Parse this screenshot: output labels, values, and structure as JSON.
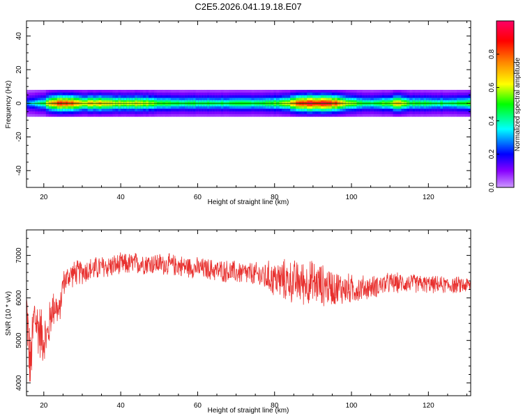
{
  "title": "C2E5.2026.041.19.18.E07",
  "chart_data": [
    {
      "type": "heatmap",
      "xlabel": "Height of straight line (km)",
      "ylabel": "Frequency (Hz)",
      "xlim": [
        15.5,
        131
      ],
      "ylim": [
        -50,
        49
      ],
      "xticks": [
        20,
        40,
        60,
        80,
        100,
        120
      ],
      "yticks": [
        -40,
        -20,
        0,
        20,
        40
      ],
      "colorbar": {
        "label": "Normalized spectral amplitude",
        "range": [
          0,
          1
        ],
        "ticks": [
          0.0,
          0.2,
          0.4,
          0.6,
          0.8
        ],
        "colors": [
          "#cc99ff",
          "#8800ff",
          "#0000ff",
          "#00ffff",
          "#00ff00",
          "#ffff00",
          "#ff8800",
          "#ff0000",
          "#ff0066"
        ]
      },
      "band": {
        "frequency_center": 0,
        "frequency_halfwidth": 4,
        "amplitude_profile": [
          {
            "x": 16,
            "a": 0.35
          },
          {
            "x": 18,
            "a": 0.45
          },
          {
            "x": 20,
            "a": 0.5
          },
          {
            "x": 22,
            "a": 0.8
          },
          {
            "x": 25,
            "a": 0.95
          },
          {
            "x": 28,
            "a": 0.85
          },
          {
            "x": 30,
            "a": 0.7
          },
          {
            "x": 35,
            "a": 0.75
          },
          {
            "x": 40,
            "a": 0.65
          },
          {
            "x": 45,
            "a": 0.7
          },
          {
            "x": 50,
            "a": 0.55
          },
          {
            "x": 60,
            "a": 0.5
          },
          {
            "x": 70,
            "a": 0.5
          },
          {
            "x": 80,
            "a": 0.55
          },
          {
            "x": 84,
            "a": 0.7
          },
          {
            "x": 87,
            "a": 0.95
          },
          {
            "x": 92,
            "a": 1.0
          },
          {
            "x": 97,
            "a": 0.85
          },
          {
            "x": 100,
            "a": 0.6
          },
          {
            "x": 105,
            "a": 0.5
          },
          {
            "x": 110,
            "a": 0.6
          },
          {
            "x": 112,
            "a": 0.8
          },
          {
            "x": 115,
            "a": 0.55
          },
          {
            "x": 120,
            "a": 0.5
          },
          {
            "x": 125,
            "a": 0.5
          },
          {
            "x": 131,
            "a": 0.55
          }
        ]
      }
    },
    {
      "type": "line",
      "xlabel": "Height of straight line (km)",
      "ylabel": "SNR (10 * v/v)",
      "xlim": [
        15.5,
        131
      ],
      "ylim": [
        3700,
        7600
      ],
      "xticks": [
        20,
        40,
        60,
        80,
        100,
        120
      ],
      "yticks": [
        4000,
        5000,
        6000,
        7000
      ],
      "series": [
        {
          "color": "#e8302e",
          "trend": [
            {
              "x": 15.5,
              "y": 5800
            },
            {
              "x": 16.5,
              "y": 4300
            },
            {
              "x": 17.5,
              "y": 5600
            },
            {
              "x": 18.5,
              "y": 5300
            },
            {
              "x": 20,
              "y": 5050
            },
            {
              "x": 21,
              "y": 5100
            },
            {
              "x": 22,
              "y": 5700
            },
            {
              "x": 23,
              "y": 5850
            },
            {
              "x": 24,
              "y": 5600
            },
            {
              "x": 25,
              "y": 6350
            },
            {
              "x": 27,
              "y": 6550
            },
            {
              "x": 30,
              "y": 6620
            },
            {
              "x": 35,
              "y": 6720
            },
            {
              "x": 40,
              "y": 6780
            },
            {
              "x": 45,
              "y": 6820
            },
            {
              "x": 50,
              "y": 6800
            },
            {
              "x": 55,
              "y": 6760
            },
            {
              "x": 60,
              "y": 6700
            },
            {
              "x": 65,
              "y": 6650
            },
            {
              "x": 70,
              "y": 6600
            },
            {
              "x": 75,
              "y": 6550
            },
            {
              "x": 80,
              "y": 6450
            },
            {
              "x": 85,
              "y": 6380
            },
            {
              "x": 90,
              "y": 6350
            },
            {
              "x": 95,
              "y": 6250
            },
            {
              "x": 100,
              "y": 6200
            },
            {
              "x": 105,
              "y": 6250
            },
            {
              "x": 110,
              "y": 6350
            },
            {
              "x": 115,
              "y": 6350
            },
            {
              "x": 120,
              "y": 6320
            },
            {
              "x": 125,
              "y": 6300
            },
            {
              "x": 131,
              "y": 6300
            }
          ],
          "noise": [
            {
              "x": 15.5,
              "amp": 900
            },
            {
              "x": 20,
              "amp": 700
            },
            {
              "x": 25,
              "amp": 350
            },
            {
              "x": 40,
              "amp": 300
            },
            {
              "x": 60,
              "amp": 280
            },
            {
              "x": 75,
              "amp": 320
            },
            {
              "x": 82,
              "amp": 550
            },
            {
              "x": 90,
              "amp": 600
            },
            {
              "x": 97,
              "amp": 450
            },
            {
              "x": 105,
              "amp": 300
            },
            {
              "x": 120,
              "amp": 230
            },
            {
              "x": 131,
              "amp": 220
            }
          ]
        }
      ]
    }
  ]
}
